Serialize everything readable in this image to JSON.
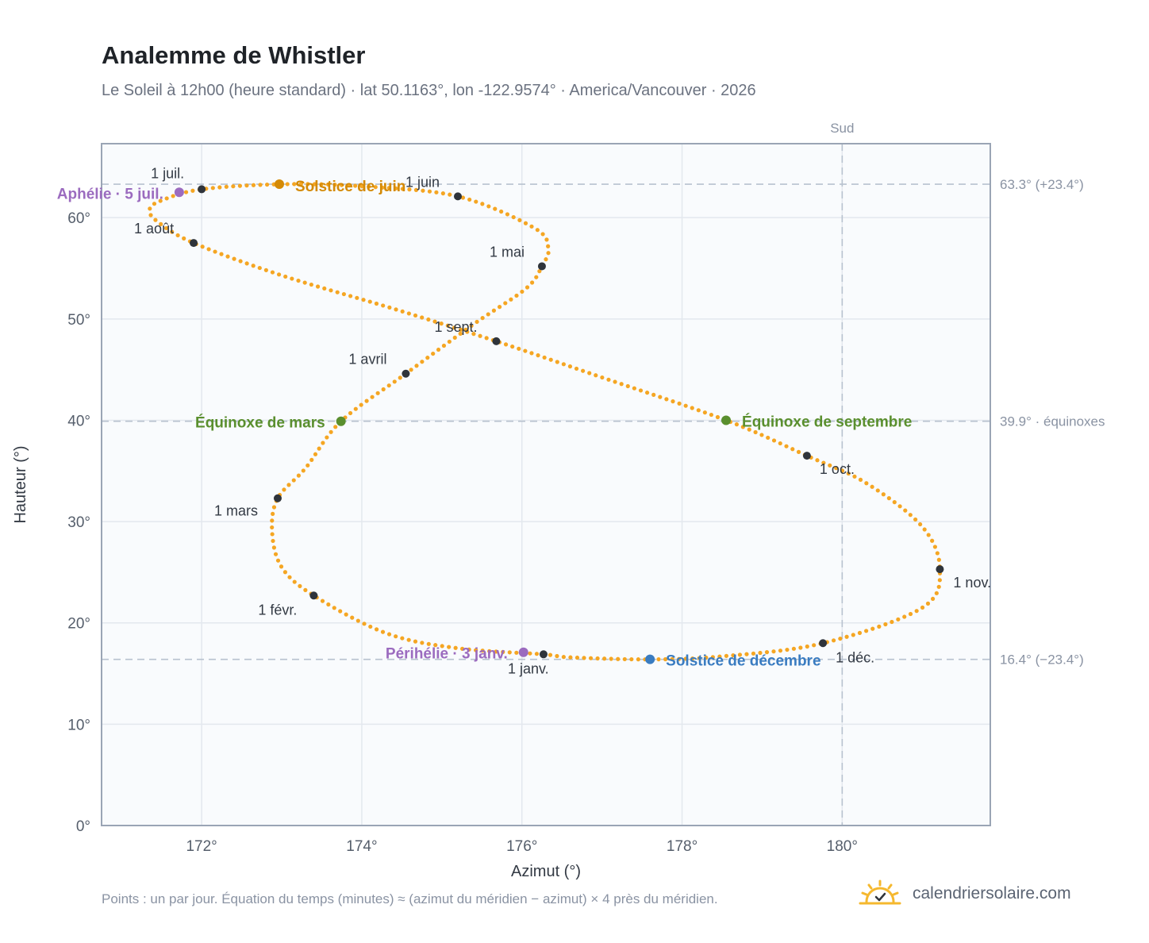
{
  "header": {
    "title": "Analemme de Whistler",
    "subtitle": "Le Soleil à 12h00 (heure standard) · lat 50.1163°, lon -122.9574° · America/Vancouver · 2026"
  },
  "footer": {
    "note": "Points : un par jour. Équation du temps (minutes) ≈ (azimut du méridien − azimut) × 4 près du méridien.",
    "brand": "calendriersolaire.com",
    "brand_icon": "sun-logo-icon"
  },
  "colors": {
    "curve": "#f5a623",
    "month_point": "#2f343b",
    "solstice_june": "#d48a06",
    "solstice_december": "#3a7cc1",
    "equinox": "#5a8f2e",
    "perihelion_aphelion": "#9b6bbf",
    "ref_line": "#b8c2cf",
    "plot_bg": "#f9fbfd",
    "plot_border": "#9aa5b5",
    "grid": "#e3e8ee"
  },
  "chart_data": {
    "type": "scatter",
    "xlabel": "Azimut (°)",
    "ylabel": "Hauteur (°)",
    "xlim": [
      170.75,
      181.85
    ],
    "ylim": [
      0,
      67.3
    ],
    "xticks": [
      172,
      174,
      176,
      178,
      180
    ],
    "xtick_labels": [
      "172°",
      "174°",
      "176°",
      "178°",
      "180°"
    ],
    "yticks": [
      0,
      10,
      20,
      30,
      40,
      50,
      60
    ],
    "ytick_labels": [
      "0°",
      "10°",
      "20°",
      "30°",
      "40°",
      "50°",
      "60°"
    ],
    "grid": true,
    "south_line": {
      "x": 180,
      "label": "Sud"
    },
    "ref_lines": [
      {
        "y": 63.3,
        "label": "63.3° (+23.4°)"
      },
      {
        "y": 39.9,
        "label": "39.9° · équinoxes"
      },
      {
        "y": 16.4,
        "label": "16.4° (−23.4°)"
      }
    ],
    "series": [
      {
        "type": "dotted-curve",
        "points": [
          [
            176.27,
            16.9
          ],
          [
            175.2,
            17.5
          ],
          [
            174.3,
            19.0
          ],
          [
            173.4,
            22.7
          ],
          [
            173.0,
            25.5
          ],
          [
            172.88,
            29.0
          ],
          [
            172.95,
            32.3
          ],
          [
            173.3,
            35.3
          ],
          [
            173.74,
            39.9
          ],
          [
            174.55,
            44.6
          ],
          [
            175.4,
            49.5
          ],
          [
            176.05,
            53.0
          ],
          [
            176.25,
            55.2
          ],
          [
            176.33,
            57.0
          ],
          [
            176.15,
            59.0
          ],
          [
            175.2,
            62.1
          ],
          [
            174.0,
            63.1
          ],
          [
            173.0,
            63.3
          ],
          [
            172.0,
            62.8
          ],
          [
            171.5,
            61.7
          ],
          [
            171.35,
            60.8
          ],
          [
            171.45,
            59.6
          ],
          [
            171.9,
            57.5
          ],
          [
            173.0,
            54.3
          ],
          [
            174.4,
            51.0
          ],
          [
            175.68,
            47.8
          ],
          [
            176.9,
            44.5
          ],
          [
            178.55,
            40.0
          ],
          [
            179.56,
            36.5
          ],
          [
            180.3,
            33.8
          ],
          [
            181.0,
            29.5
          ],
          [
            181.22,
            25.3
          ],
          [
            181.0,
            21.5
          ],
          [
            179.76,
            18.0
          ],
          [
            178.5,
            16.7
          ],
          [
            177.6,
            16.4
          ],
          [
            176.6,
            16.6
          ],
          [
            176.27,
            16.9
          ]
        ]
      }
    ],
    "month_points": [
      {
        "label": "1 janv.",
        "x": 176.27,
        "y": 16.9
      },
      {
        "label": "1 févr.",
        "x": 173.4,
        "y": 22.7
      },
      {
        "label": "1 mars",
        "x": 172.95,
        "y": 32.3
      },
      {
        "label": "1 avril",
        "x": 174.55,
        "y": 44.6
      },
      {
        "label": "1 mai",
        "x": 176.25,
        "y": 55.2
      },
      {
        "label": "1 juin",
        "x": 175.2,
        "y": 62.1
      },
      {
        "label": "1 juil.",
        "x": 172.0,
        "y": 62.8
      },
      {
        "label": "1 août",
        "x": 171.9,
        "y": 57.5
      },
      {
        "label": "1 sept.",
        "x": 175.68,
        "y": 47.8
      },
      {
        "label": "1 oct.",
        "x": 179.56,
        "y": 36.5
      },
      {
        "label": "1 nov.",
        "x": 181.22,
        "y": 25.3
      },
      {
        "label": "1 déc.",
        "x": 179.76,
        "y": 18.0
      }
    ],
    "events": [
      {
        "label": "Solstice de juin",
        "x": 172.97,
        "y": 63.3,
        "color": "#d48a06"
      },
      {
        "label": "Solstice de décembre",
        "x": 177.6,
        "y": 16.4,
        "color": "#3a7cc1"
      },
      {
        "label": "Équinoxe de mars",
        "x": 173.74,
        "y": 39.9,
        "color": "#5a8f2e"
      },
      {
        "label": "Équinoxe de septembre",
        "x": 178.55,
        "y": 40.0,
        "color": "#5a8f2e"
      },
      {
        "label": "Aphélie · 5 juil.",
        "x": 171.72,
        "y": 62.5,
        "color": "#9b6bbf"
      },
      {
        "label": "Périhélie · 3 janv.",
        "x": 176.02,
        "y": 17.1,
        "color": "#9b6bbf"
      }
    ]
  }
}
